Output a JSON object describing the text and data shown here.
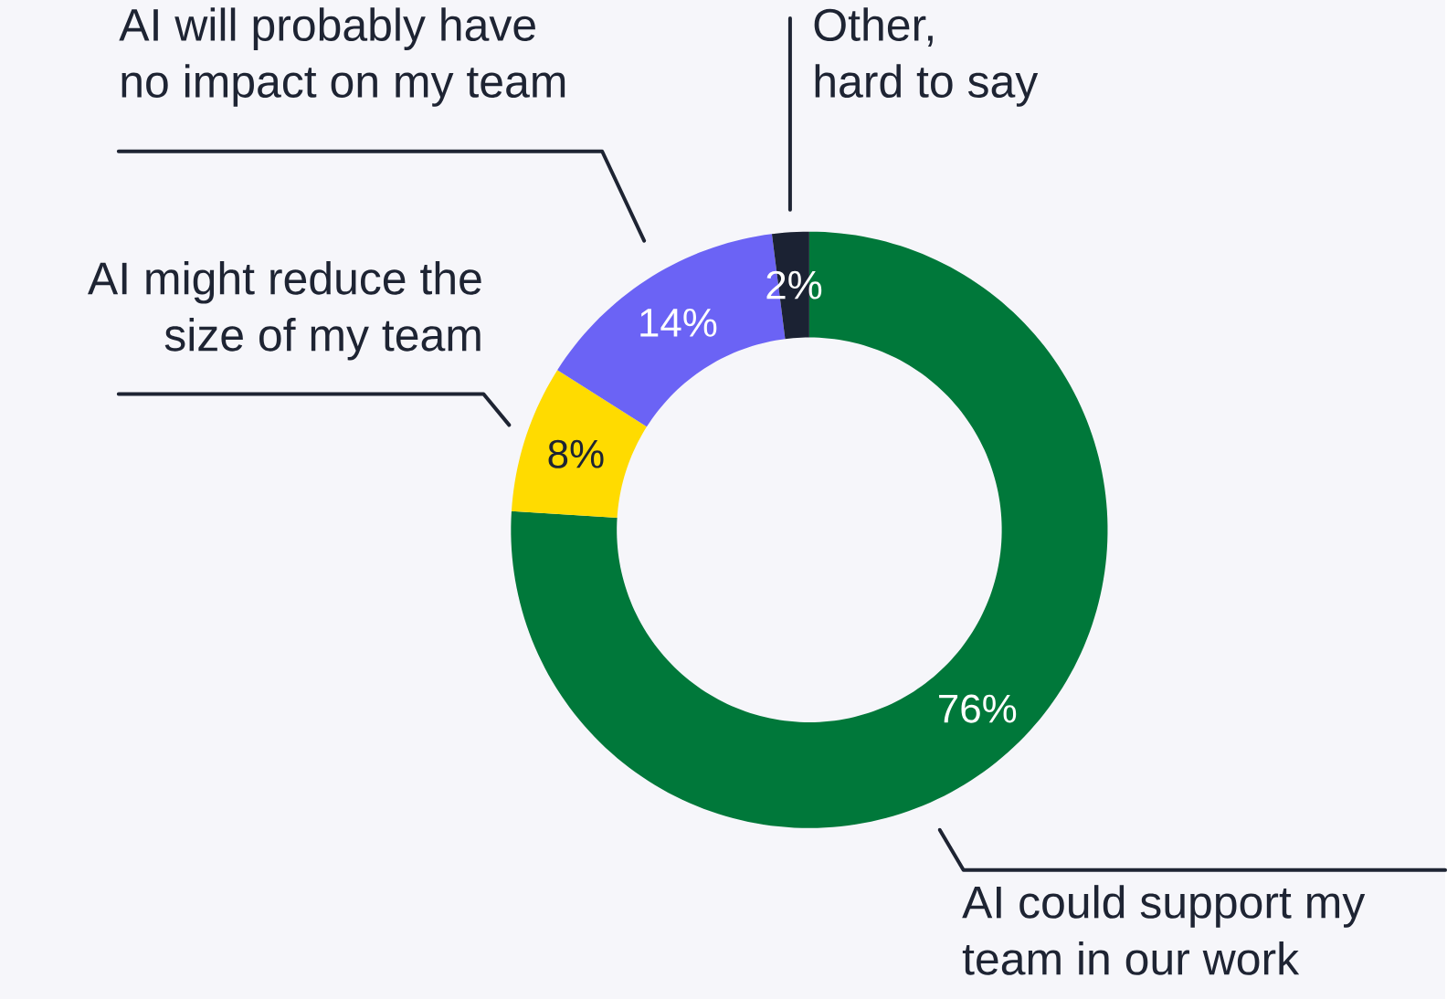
{
  "chart_data": {
    "type": "donut",
    "categories": [
      "AI could support my team in our work",
      "AI might reduce the size of my team",
      "AI will probably have no impact on my team",
      "Other, hard to say"
    ],
    "values": [
      76,
      8,
      14,
      2
    ],
    "colors": [
      "#00783a",
      "#ffdb00",
      "#6b63f5",
      "#1b2233"
    ],
    "value_labels": [
      "76%",
      "8%",
      "14%",
      "2%"
    ]
  }
}
